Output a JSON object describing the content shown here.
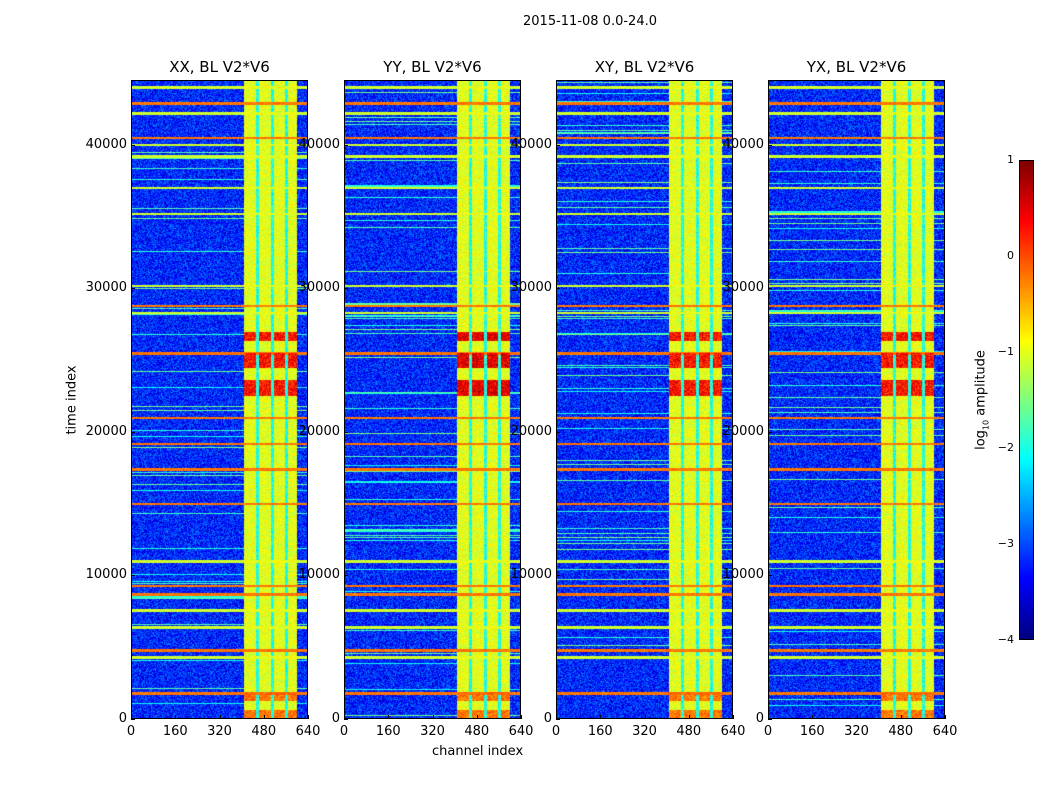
{
  "chart_data": {
    "type": "heatmap",
    "suptitle": "2015-11-08 0.0-24.0",
    "xlabel": "channel index",
    "ylabel": "time index",
    "xlim": [
      0,
      640
    ],
    "ylim": [
      0,
      44500
    ],
    "xticks": [
      "0",
      "160",
      "320",
      "480",
      "640"
    ],
    "yticks": [
      "0",
      "10000",
      "20000",
      "30000",
      "40000"
    ],
    "panels": [
      {
        "title": "XX, BL V2*V6"
      },
      {
        "title": "YY, BL V2*V6"
      },
      {
        "title": "XY, BL V2*V6"
      },
      {
        "title": "YX, BL V2*V6"
      }
    ],
    "colorbar": {
      "label_prefix": "log",
      "label_sub": "10",
      "label_suffix": " amplitude",
      "range": [
        -4,
        1
      ],
      "ticks": [
        "1",
        "0",
        "−1",
        "−2",
        "−3",
        "−4"
      ],
      "colormap": "jet"
    },
    "background_level": -3.2,
    "rfi_channel_band": [
      405,
      600
    ],
    "rfi_band_gaps": [
      455,
      510,
      560
    ],
    "rfi_band_level": -1.0,
    "strong_rfi_time_range": [
      22000,
      27000
    ],
    "strong_rfi_level": 0.3,
    "flagged_time_rows": [
      1800,
      4300,
      4800,
      6400,
      7600,
      8700,
      9300,
      11000,
      15000,
      17400,
      19200,
      21000,
      25500,
      28300,
      28800,
      30200,
      35200,
      37000,
      39200,
      40000,
      40500,
      42200,
      42900,
      44000
    ]
  }
}
